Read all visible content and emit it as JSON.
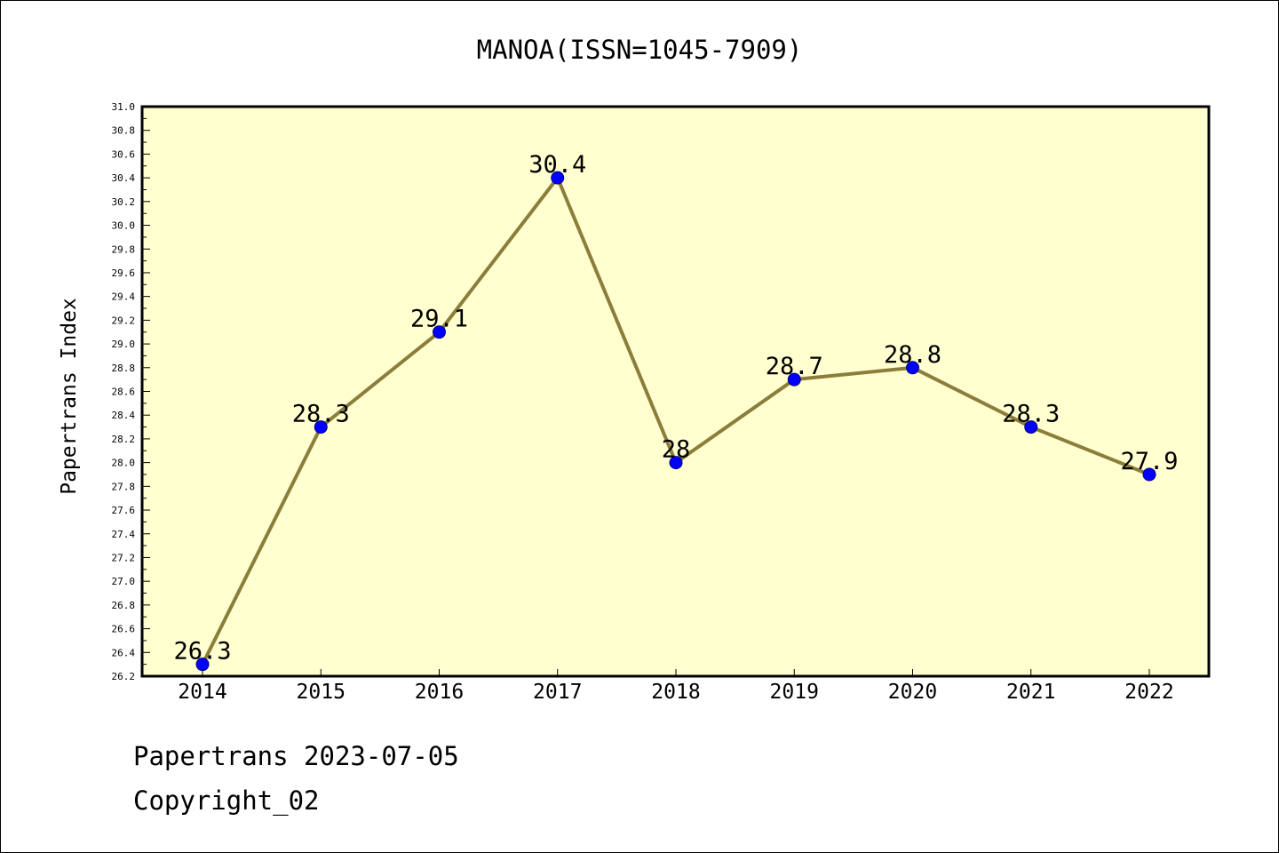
{
  "chart_data": {
    "type": "line",
    "title": "MANOA(ISSN=1045-7909)",
    "xlabel": "",
    "ylabel": "Papertrans Index",
    "categories": [
      "2014",
      "2015",
      "2016",
      "2017",
      "2018",
      "2019",
      "2020",
      "2021",
      "2022"
    ],
    "values": [
      26.3,
      28.3,
      29.1,
      30.4,
      28.0,
      28.7,
      28.8,
      28.3,
      27.9
    ],
    "data_labels": [
      "26.3",
      "28.3",
      "29.1",
      "30.4",
      "28",
      "28.7",
      "28.8",
      "28.3",
      "27.9"
    ],
    "ylim": [
      26.2,
      31.0
    ],
    "yticks": [
      "26.2",
      "26.4",
      "26.6",
      "26.8",
      "27.0",
      "27.2",
      "27.4",
      "27.6",
      "27.8",
      "28.0",
      "28.2",
      "28.4",
      "28.6",
      "28.8",
      "29.0",
      "29.2",
      "29.4",
      "29.6",
      "29.8",
      "30.0",
      "30.2",
      "30.4",
      "30.6",
      "30.8",
      "31.0"
    ],
    "grid": false,
    "colors": {
      "plot_background": "#ffffd0",
      "line": "#8b7d3a",
      "marker_fill": "#0000ff",
      "marker_edge": "#000080"
    }
  },
  "footer": {
    "line1": "Papertrans 2023-07-05",
    "line2": "Copyright_02"
  }
}
